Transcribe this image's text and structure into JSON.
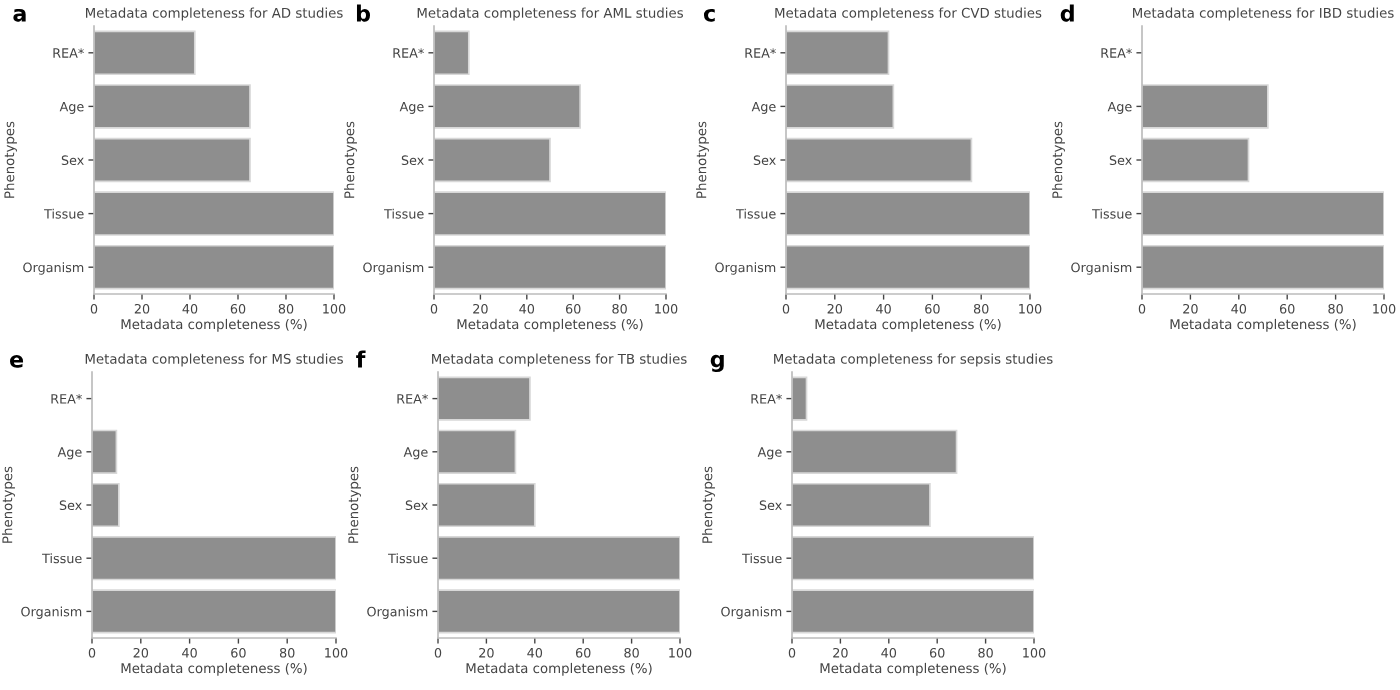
{
  "chart_data": [
    {
      "type": "bar",
      "orientation": "horizontal",
      "title": "Metadata completeness for AD studies",
      "xlabel": "Metadata completeness (%)",
      "ylabel": "Phenotypes",
      "annotations": [
        "a"
      ],
      "categories": [
        "REA*",
        "Age",
        "Sex",
        "Tissue",
        "Organism"
      ],
      "values": [
        42,
        65,
        65,
        100,
        100
      ],
      "color": "#8e8e8e",
      "xlim": [
        0,
        100
      ],
      "xticks": [
        0,
        20,
        40,
        60,
        80,
        100
      ]
    },
    {
      "type": "bar",
      "orientation": "horizontal",
      "title": "Metadata completeness for AML studies",
      "xlabel": "Metadata completeness (%)",
      "ylabel": "Phenotypes",
      "annotations": [
        "b"
      ],
      "categories": [
        "REA*",
        "Age",
        "Sex",
        "Tissue",
        "Organism"
      ],
      "values": [
        15,
        63,
        50,
        100,
        100
      ],
      "color": "#8e8e8e",
      "xlim": [
        0,
        100
      ],
      "xticks": [
        0,
        20,
        40,
        60,
        80,
        100
      ]
    },
    {
      "type": "bar",
      "orientation": "horizontal",
      "title": "Metadata completeness for CVD studies",
      "xlabel": "Metadata completeness (%)",
      "ylabel": "Phenotypes",
      "annotations": [
        "c"
      ],
      "categories": [
        "REA*",
        "Age",
        "Sex",
        "Tissue",
        "Organism"
      ],
      "values": [
        42,
        44,
        76,
        100,
        100
      ],
      "color": "#8e8e8e",
      "xlim": [
        0,
        100
      ],
      "xticks": [
        0,
        20,
        40,
        60,
        80,
        100
      ]
    },
    {
      "type": "bar",
      "orientation": "horizontal",
      "title": "Metadata completeness for IBD studies",
      "xlabel": "Metadata completeness (%)",
      "ylabel": "Phenotypes",
      "annotations": [
        "d"
      ],
      "categories": [
        "REA*",
        "Age",
        "Sex",
        "Tissue",
        "Organism"
      ],
      "values": [
        0,
        52,
        44,
        100,
        100
      ],
      "color": "#8e8e8e",
      "xlim": [
        0,
        100
      ],
      "xticks": [
        0,
        20,
        40,
        60,
        80,
        100
      ]
    },
    {
      "type": "bar",
      "orientation": "horizontal",
      "title": "Metadata completeness for MS studies",
      "xlabel": "Metadata completeness (%)",
      "ylabel": "Phenotypes",
      "annotations": [
        "e"
      ],
      "categories": [
        "REA*",
        "Age",
        "Sex",
        "Tissue",
        "Organism"
      ],
      "values": [
        0,
        10,
        11,
        100,
        100
      ],
      "color": "#8e8e8e",
      "xlim": [
        0,
        100
      ],
      "xticks": [
        0,
        20,
        40,
        60,
        80,
        100
      ]
    },
    {
      "type": "bar",
      "orientation": "horizontal",
      "title": "Metadata completeness for TB studies",
      "xlabel": "Metadata completeness (%)",
      "ylabel": "Phenotypes",
      "annotations": [
        "f"
      ],
      "categories": [
        "REA*",
        "Age",
        "Sex",
        "Tissue",
        "Organism"
      ],
      "values": [
        38,
        32,
        40,
        100,
        100
      ],
      "color": "#8e8e8e",
      "xlim": [
        0,
        100
      ],
      "xticks": [
        0,
        20,
        40,
        60,
        80,
        100
      ]
    },
    {
      "type": "bar",
      "orientation": "horizontal",
      "title": "Metadata completeness for sepsis studies",
      "xlabel": "Metadata completeness (%)",
      "ylabel": "Phenotypes",
      "annotations": [
        "g"
      ],
      "categories": [
        "REA*",
        "Age",
        "Sex",
        "Tissue",
        "Organism"
      ],
      "values": [
        6,
        68,
        57,
        100,
        100
      ],
      "color": "#8e8e8e",
      "xlim": [
        0,
        100
      ],
      "xticks": [
        0,
        20,
        40,
        60,
        80,
        100
      ]
    }
  ]
}
